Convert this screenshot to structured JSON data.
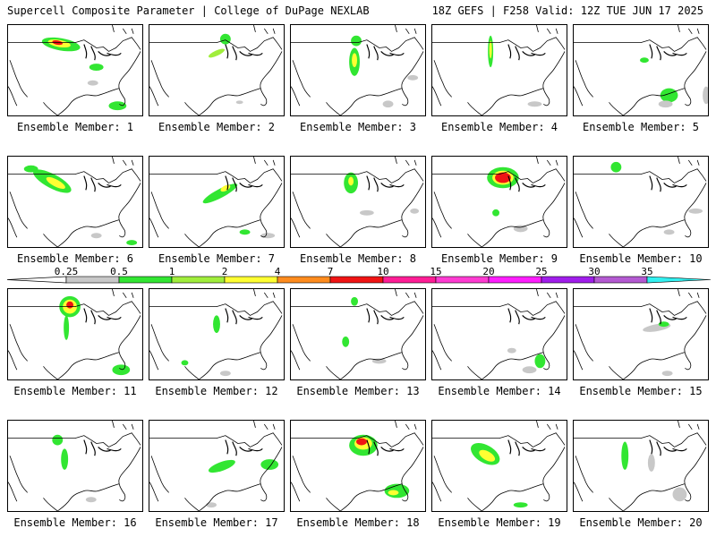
{
  "header": {
    "title_left": "Supercell Composite Parameter | College of DuPage NEXLAB",
    "title_right": "18Z GEFS | F258 Valid: 12Z TUE JUN 17 2025"
  },
  "panels": [
    {
      "label": "Ensemble Member: 1"
    },
    {
      "label": "Ensemble Member: 2"
    },
    {
      "label": "Ensemble Member: 3"
    },
    {
      "label": "Ensemble Member: 4"
    },
    {
      "label": "Ensemble Member: 5"
    },
    {
      "label": "Ensemble Member: 6"
    },
    {
      "label": "Ensemble Member: 7"
    },
    {
      "label": "Ensemble Member: 8"
    },
    {
      "label": "Ensemble Member: 9"
    },
    {
      "label": "Ensemble Member: 10"
    },
    {
      "label": "Ensemble Member: 11"
    },
    {
      "label": "Ensemble Member: 12"
    },
    {
      "label": "Ensemble Member: 13"
    },
    {
      "label": "Ensemble Member: 14"
    },
    {
      "label": "Ensemble Member: 15"
    },
    {
      "label": "Ensemble Member: 16"
    },
    {
      "label": "Ensemble Member: 17"
    },
    {
      "label": "Ensemble Member: 18"
    },
    {
      "label": "Ensemble Member: 19"
    },
    {
      "label": "Ensemble Member: 20"
    }
  ],
  "colorbar": {
    "ticks": [
      "0.25",
      "0.5",
      "1",
      "2",
      "4",
      "7",
      "10",
      "15",
      "20",
      "25",
      "30",
      "35"
    ],
    "colors": [
      "#c8c8c8",
      "#32e632",
      "#a0ee3c",
      "#ffff32",
      "#ff8c1e",
      "#f01414",
      "#ff1e96",
      "#ff3cd2",
      "#ff1eff",
      "#a01eeb",
      "#b45ad2",
      "#32f0f0"
    ]
  }
}
